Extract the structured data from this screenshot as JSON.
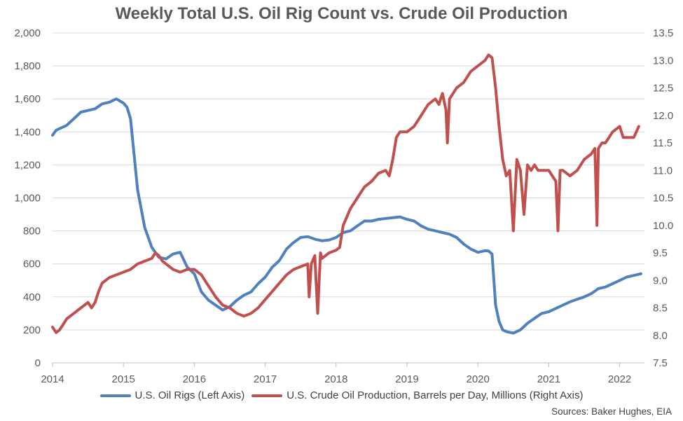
{
  "chart_data": {
    "type": "line",
    "title": "Weekly Total U.S. Oil Rig Count vs. Crude Oil Production",
    "x_ticks": [
      "2014",
      "2015",
      "2016",
      "2017",
      "2018",
      "2019",
      "2020",
      "2021",
      "2022"
    ],
    "x_range": [
      2014.0,
      2022.35
    ],
    "y_left": {
      "ylim": [
        0,
        2000
      ],
      "ticks": [
        "0",
        "200",
        "400",
        "600",
        "800",
        "1,000",
        "1,200",
        "1,400",
        "1,600",
        "1,800",
        "2,000"
      ]
    },
    "y_right": {
      "ylim": [
        7.5,
        13.5
      ],
      "ticks": [
        "7.5",
        "8.0",
        "8.5",
        "9.0",
        "9.5",
        "10.0",
        "10.5",
        "11.0",
        "11.5",
        "12.0",
        "12.5",
        "13.0",
        "13.5"
      ]
    },
    "grid": true,
    "legend_position": "bottom",
    "series": [
      {
        "name": "U.S. Oil Rigs (Left Axis)",
        "axis": "left",
        "color": "#4F81BD",
        "x": [
          2014.0,
          2014.05,
          2014.1,
          2014.2,
          2014.3,
          2014.4,
          2014.5,
          2014.6,
          2014.7,
          2014.8,
          2014.9,
          2015.0,
          2015.05,
          2015.1,
          2015.2,
          2015.3,
          2015.4,
          2015.5,
          2015.6,
          2015.7,
          2015.8,
          2015.9,
          2016.0,
          2016.1,
          2016.2,
          2016.3,
          2016.4,
          2016.5,
          2016.6,
          2016.7,
          2016.8,
          2016.9,
          2017.0,
          2017.1,
          2017.2,
          2017.3,
          2017.4,
          2017.5,
          2017.6,
          2017.7,
          2017.8,
          2017.9,
          2018.0,
          2018.1,
          2018.2,
          2018.3,
          2018.4,
          2018.5,
          2018.6,
          2018.7,
          2018.8,
          2018.9,
          2019.0,
          2019.1,
          2019.2,
          2019.3,
          2019.4,
          2019.5,
          2019.6,
          2019.7,
          2019.8,
          2019.9,
          2020.0,
          2020.1,
          2020.15,
          2020.2,
          2020.25,
          2020.3,
          2020.35,
          2020.4,
          2020.5,
          2020.6,
          2020.7,
          2020.8,
          2020.9,
          2021.0,
          2021.1,
          2021.2,
          2021.3,
          2021.4,
          2021.5,
          2021.6,
          2021.7,
          2021.8,
          2021.9,
          2022.0,
          2022.1,
          2022.2,
          2022.3
        ],
        "values": [
          1380,
          1410,
          1420,
          1440,
          1480,
          1520,
          1530,
          1540,
          1570,
          1580,
          1600,
          1575,
          1550,
          1480,
          1050,
          820,
          700,
          640,
          630,
          660,
          670,
          580,
          540,
          430,
          380,
          350,
          320,
          340,
          380,
          410,
          430,
          480,
          520,
          580,
          620,
          690,
          730,
          760,
          765,
          750,
          740,
          745,
          760,
          790,
          800,
          830,
          860,
          860,
          870,
          875,
          880,
          885,
          870,
          860,
          830,
          810,
          800,
          790,
          780,
          760,
          720,
          690,
          670,
          680,
          678,
          660,
          350,
          250,
          200,
          190,
          180,
          200,
          240,
          270,
          300,
          310,
          330,
          350,
          370,
          385,
          400,
          420,
          450,
          460,
          480,
          500,
          520,
          530,
          540
        ]
      },
      {
        "name": "U.S. Crude Oil Production, Barrels per Day, Millions (Right Axis)",
        "axis": "right",
        "color": "#C0504D",
        "x": [
          2014.0,
          2014.05,
          2014.1,
          2014.15,
          2014.2,
          2014.3,
          2014.4,
          2014.5,
          2014.55,
          2014.6,
          2014.65,
          2014.7,
          2014.8,
          2014.9,
          2015.0,
          2015.1,
          2015.2,
          2015.3,
          2015.4,
          2015.45,
          2015.5,
          2015.55,
          2015.6,
          2015.7,
          2015.8,
          2015.9,
          2016.0,
          2016.1,
          2016.2,
          2016.3,
          2016.4,
          2016.5,
          2016.6,
          2016.7,
          2016.8,
          2016.9,
          2017.0,
          2017.1,
          2017.2,
          2017.3,
          2017.4,
          2017.5,
          2017.6,
          2017.62,
          2017.65,
          2017.7,
          2017.74,
          2017.78,
          2017.8,
          2017.9,
          2018.0,
          2018.05,
          2018.1,
          2018.2,
          2018.3,
          2018.4,
          2018.5,
          2018.6,
          2018.7,
          2018.75,
          2018.8,
          2018.85,
          2018.9,
          2019.0,
          2019.1,
          2019.2,
          2019.3,
          2019.4,
          2019.45,
          2019.5,
          2019.55,
          2019.57,
          2019.6,
          2019.7,
          2019.8,
          2019.9,
          2020.0,
          2020.1,
          2020.15,
          2020.2,
          2020.25,
          2020.3,
          2020.35,
          2020.4,
          2020.45,
          2020.5,
          2020.55,
          2020.6,
          2020.65,
          2020.7,
          2020.75,
          2020.8,
          2020.85,
          2020.9,
          2021.0,
          2021.1,
          2021.13,
          2021.16,
          2021.2,
          2021.3,
          2021.4,
          2021.5,
          2021.6,
          2021.65,
          2021.68,
          2021.7,
          2021.75,
          2021.8,
          2021.9,
          2022.0,
          2022.05,
          2022.1,
          2022.2,
          2022.27
        ],
        "values": [
          8.15,
          8.05,
          8.1,
          8.2,
          8.3,
          8.4,
          8.5,
          8.6,
          8.5,
          8.6,
          8.8,
          8.95,
          9.05,
          9.1,
          9.15,
          9.2,
          9.3,
          9.35,
          9.4,
          9.5,
          9.45,
          9.35,
          9.3,
          9.2,
          9.15,
          9.2,
          9.2,
          9.1,
          8.9,
          8.7,
          8.55,
          8.5,
          8.4,
          8.35,
          8.4,
          8.5,
          8.65,
          8.8,
          8.95,
          9.1,
          9.2,
          9.25,
          9.3,
          8.7,
          9.3,
          9.45,
          8.4,
          9.5,
          9.4,
          9.5,
          9.55,
          9.6,
          10.0,
          10.3,
          10.5,
          10.7,
          10.8,
          10.95,
          11.0,
          10.9,
          11.2,
          11.6,
          11.7,
          11.7,
          11.8,
          12.0,
          12.2,
          12.3,
          12.2,
          12.4,
          12.1,
          11.5,
          12.3,
          12.5,
          12.6,
          12.8,
          12.9,
          13.0,
          13.1,
          13.05,
          12.5,
          11.8,
          11.2,
          10.9,
          11.0,
          9.9,
          11.2,
          11.0,
          10.2,
          11.1,
          11.0,
          11.1,
          11.0,
          11.0,
          11.0,
          10.8,
          9.9,
          11.0,
          11.0,
          10.9,
          11.0,
          11.2,
          11.3,
          11.4,
          10.0,
          11.4,
          11.5,
          11.5,
          11.7,
          11.8,
          11.6,
          11.6,
          11.6,
          11.8
        ]
      }
    ]
  },
  "source_text": "Sources: Baker Hughes, EIA"
}
